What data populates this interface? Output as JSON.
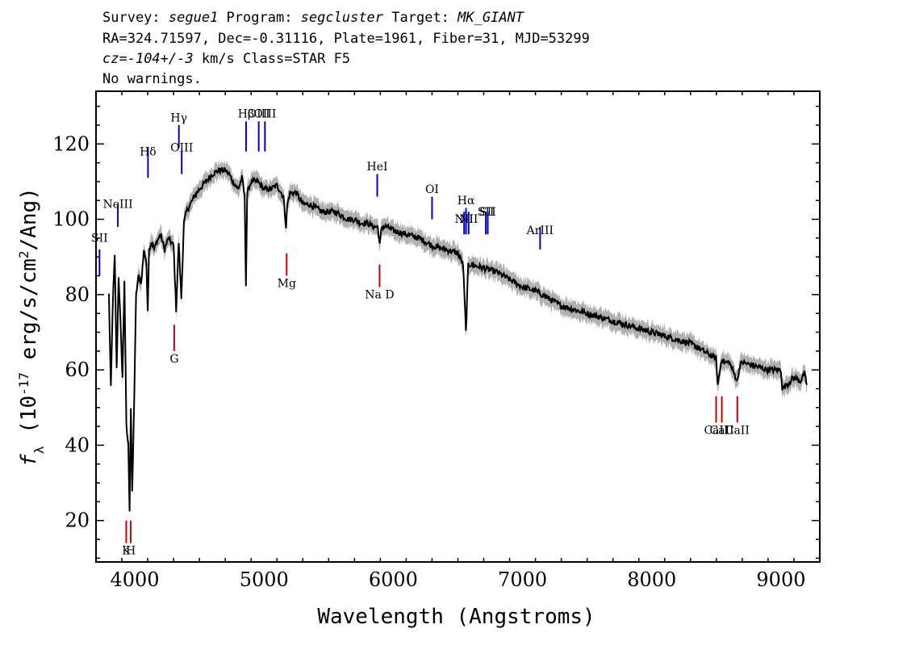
{
  "header": {
    "line1_parts": [
      {
        "t": "Survey: ",
        "i": false
      },
      {
        "t": "segue1",
        "i": true
      },
      {
        "t": " Program: ",
        "i": false
      },
      {
        "t": "segcluster",
        "i": true
      },
      {
        "t": " Target: ",
        "i": false
      },
      {
        "t": "MK_GIANT",
        "i": true
      }
    ],
    "line2": "RA=324.71597, Dec=-0.31116, Plate=1961, Fiber=31, MJD=53299",
    "line3_parts": [
      {
        "t": "cz=",
        "i": true
      },
      {
        "t": "-104+/-3",
        "i": true
      },
      {
        "t": " km/s Class=STAR F5",
        "i": false
      }
    ],
    "line4": "No warnings."
  },
  "chart_data": {
    "type": "line",
    "xlabel": "Wavelength (Angstroms)",
    "ylabel": "f_λ (10^-17 erg/s/cm^2/Ang)",
    "xlim": [
      3700,
      9300
    ],
    "ylim": [
      9,
      134
    ],
    "x_ticks": [
      4000,
      5000,
      6000,
      7000,
      8000,
      9000
    ],
    "y_ticks": [
      20,
      40,
      60,
      80,
      100,
      120
    ],
    "grid": false,
    "series": [
      {
        "color": "#000000",
        "x": [
          3800,
          3815,
          3830,
          3845,
          3860,
          3875,
          3890,
          3905,
          3920,
          3935,
          3950,
          3960,
          3970,
          3980,
          3995,
          4010,
          4030,
          4050,
          4070,
          4090,
          4100,
          4110,
          4130,
          4150,
          4170,
          4200,
          4230,
          4260,
          4280,
          4300,
          4320,
          4340,
          4360,
          4380,
          4400,
          4430,
          4460,
          4500,
          4550,
          4600,
          4650,
          4700,
          4730,
          4760,
          4800,
          4830,
          4850,
          4860,
          4870,
          4900,
          4950,
          5000,
          5050,
          5100,
          5150,
          5170,
          5180,
          5200,
          5250,
          5300,
          5350,
          5400,
          5450,
          5500,
          5550,
          5600,
          5650,
          5700,
          5750,
          5800,
          5850,
          5880,
          5895,
          5910,
          5950,
          6000,
          6100,
          6200,
          6300,
          6400,
          6500,
          6540,
          6562,
          6580,
          6600,
          6700,
          6800,
          6900,
          7000,
          7100,
          7200,
          7250,
          7300,
          7400,
          7500,
          7600,
          7700,
          7800,
          7900,
          8000,
          8100,
          8200,
          8300,
          8400,
          8450,
          8498,
          8510,
          8542,
          8560,
          8600,
          8662,
          8680,
          8700,
          8800,
          8900,
          9000,
          9010,
          9100,
          9150,
          9180,
          9200
        ],
        "values": [
          80,
          55,
          78,
          90,
          60,
          85,
          72,
          58,
          84,
          45,
          40,
          23,
          50,
          27,
          52,
          80,
          85,
          83,
          92,
          88,
          76,
          92,
          94,
          92,
          94,
          96,
          92,
          95,
          94,
          93,
          76,
          94,
          79,
          99,
          102,
          104,
          106,
          108,
          110,
          112,
          113,
          113,
          112,
          110,
          108,
          111,
          106,
          83,
          107,
          110,
          110,
          108,
          108,
          109,
          106,
          98,
          104,
          107,
          107,
          104,
          104,
          103,
          102,
          102,
          102,
          101,
          100,
          100,
          99,
          99,
          98,
          98,
          93,
          98,
          98,
          97,
          96,
          95,
          93,
          92,
          91,
          88,
          70,
          88,
          88,
          87,
          86,
          84,
          82,
          81,
          79,
          78,
          77,
          76,
          75,
          74,
          73,
          72,
          71,
          70,
          69,
          68,
          67,
          65,
          64,
          63,
          56,
          63,
          62,
          62,
          57,
          61,
          62,
          61,
          60,
          60,
          55,
          58,
          57,
          59,
          56
        ],
        "error": 1.6
      }
    ],
    "annotations": {
      "emission": [
        {
          "name": "SII",
          "wl": 3727,
          "y1": 85,
          "y2": 92,
          "ly": 94
        },
        {
          "name": "NeIII",
          "wl": 3869,
          "y1": 98,
          "y2": 104,
          "ly": 103
        },
        {
          "name": "Hδ",
          "wl": 4102,
          "y1": 111,
          "y2": 119,
          "ly": 117
        },
        {
          "name": "Hγ",
          "wl": 4341,
          "y1": 119,
          "y2": 125,
          "ly": 126
        },
        {
          "name": "OIII",
          "wl": 4363,
          "y1": 112,
          "y2": 118,
          "ly": 118
        },
        {
          "name": "Hβ",
          "wl": 4861,
          "y1": 118,
          "y2": 126,
          "ly": 127
        },
        {
          "name": "OIII",
          "wl": 4959,
          "y1": 118,
          "y2": 126,
          "ly": 127
        },
        {
          "name": "OIII",
          "wl": 5007,
          "y1": 118,
          "y2": 126,
          "ly": 127
        },
        {
          "name": "HeI",
          "wl": 5876,
          "y1": 106,
          "y2": 112,
          "ly": 113
        },
        {
          "name": "OI",
          "wl": 6300,
          "y1": 100,
          "y2": 106,
          "ly": 107
        },
        {
          "name": "NII",
          "wl": 6548,
          "y1": 96,
          "y2": 102,
          "ly": 99
        },
        {
          "name": "Hα",
          "wl": 6563,
          "y1": 96,
          "y2": 103,
          "ly": 104
        },
        {
          "name": "NII",
          "wl": 6583,
          "y1": 96,
          "y2": 102,
          "ly": 99
        },
        {
          "name": "SII",
          "wl": 6716,
          "y1": 96,
          "y2": 102,
          "ly": 101
        },
        {
          "name": "SII",
          "wl": 6731,
          "y1": 96,
          "y2": 102,
          "ly": 101
        },
        {
          "name": "ArIII",
          "wl": 7136,
          "y1": 92,
          "y2": 98,
          "ly": 96
        }
      ],
      "absorption": [
        {
          "name": "K",
          "wl": 3934,
          "y1": 14,
          "y2": 20,
          "ly": 11
        },
        {
          "name": "H",
          "wl": 3969,
          "y1": 14,
          "y2": 20,
          "ly": 11
        },
        {
          "name": "G",
          "wl": 4305,
          "y1": 65,
          "y2": 72,
          "ly": 62
        },
        {
          "name": "Mg",
          "wl": 5175,
          "y1": 85,
          "y2": 91,
          "ly": 82
        },
        {
          "name": "Na D",
          "wl": 5894,
          "y1": 82,
          "y2": 88,
          "ly": 79
        },
        {
          "name": "CaII",
          "wl": 8498,
          "y1": 46,
          "y2": 53,
          "ly": 43
        },
        {
          "name": "CaII",
          "wl": 8542,
          "y1": 46,
          "y2": 53,
          "ly": 43
        },
        {
          "name": "CaII",
          "wl": 8662,
          "y1": 46,
          "y2": 53,
          "ly": 43
        }
      ],
      "colors": {
        "emission": "#0000cc",
        "absorption": "#cc0000",
        "error": "#b0b0b0"
      }
    }
  }
}
